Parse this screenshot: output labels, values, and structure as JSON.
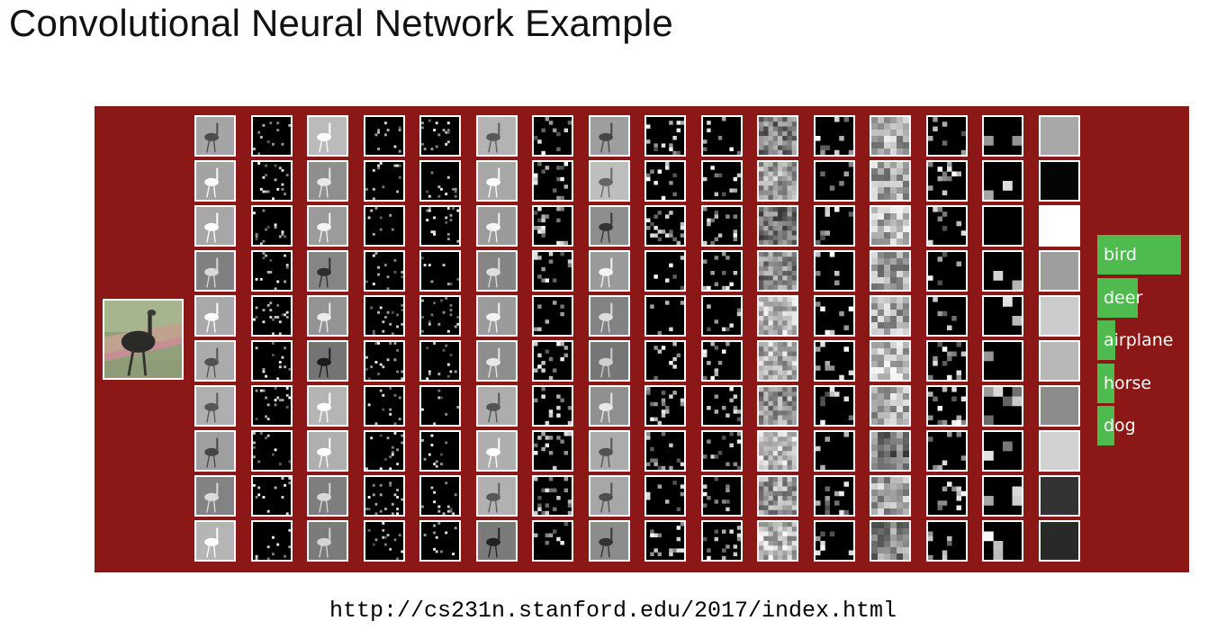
{
  "title": "Convolutional Neural Network Example",
  "footer_url": "http://cs231n.stanford.edu/2017/index.html",
  "colors": {
    "panel_background": "#8b1717",
    "bar_color": "#4fbb4f",
    "tile_border": "#ffffff"
  },
  "network": {
    "columns": [
      {
        "kind": "conv"
      },
      {
        "kind": "relu"
      },
      {
        "kind": "conv"
      },
      {
        "kind": "relu"
      },
      {
        "kind": "pool"
      },
      {
        "kind": "conv"
      },
      {
        "kind": "relu"
      },
      {
        "kind": "conv"
      },
      {
        "kind": "relu"
      },
      {
        "kind": "pool"
      },
      {
        "kind": "conv"
      },
      {
        "kind": "relu"
      },
      {
        "kind": "conv"
      },
      {
        "kind": "relu"
      },
      {
        "kind": "pool"
      },
      {
        "kind": "fc"
      }
    ],
    "rows": 10,
    "fc_gray_levels": [
      0.66,
      0.02,
      1.0,
      0.62,
      0.8,
      0.72,
      0.55,
      0.82,
      0.2,
      0.16
    ]
  },
  "predictions": [
    {
      "label": "bird",
      "score": 1.0
    },
    {
      "label": "deer",
      "score": 0.48
    },
    {
      "label": "airplane",
      "score": 0.21
    },
    {
      "label": "horse",
      "score": 0.2
    },
    {
      "label": "dog",
      "score": 0.2
    }
  ]
}
